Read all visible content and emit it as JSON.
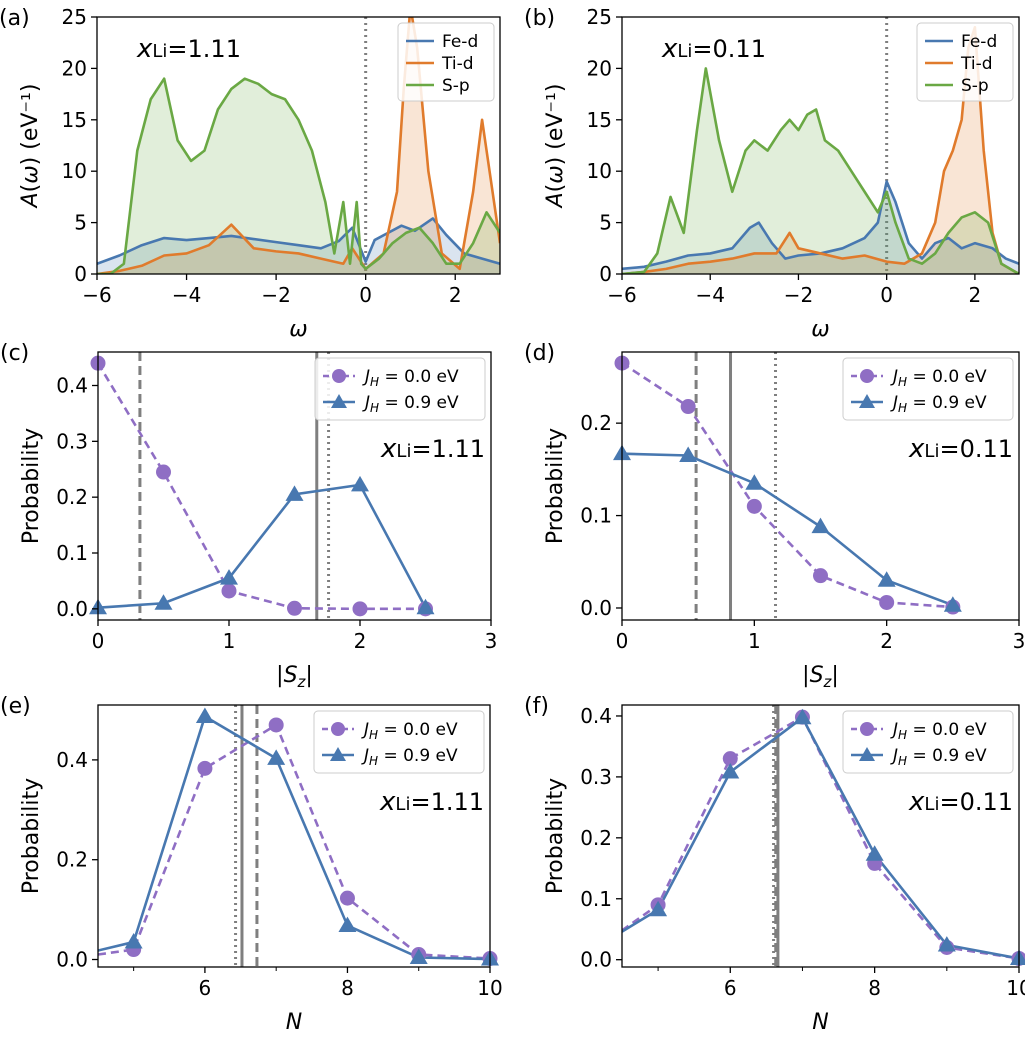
{
  "colors": {
    "blue": "#4878b0",
    "orange": "#e07b2c",
    "green": "#6aa844",
    "purple": "#8f6ec4",
    "gray": "#7f7f7f"
  },
  "chart_data": [
    {
      "id": "a",
      "type": "area",
      "panel_label": "(a)",
      "annotation": "xLi=1.11",
      "xlabel": "ω",
      "ylabel": "A(ω) (eV⁻¹)",
      "xlim": [
        -6,
        3
      ],
      "ylim": [
        0,
        25
      ],
      "xticks": [
        -6,
        -4,
        -2,
        0,
        2
      ],
      "yticks": [
        0,
        5,
        10,
        15,
        20,
        25
      ],
      "legend_position": "top-right",
      "vlines": [
        {
          "x": 0,
          "style": "dotted"
        }
      ],
      "series": [
        {
          "name": "Fe-d",
          "color": "blue",
          "x": [
            -6,
            -5.5,
            -5,
            -4.5,
            -4,
            -3.5,
            -3,
            -2.5,
            -2,
            -1.5,
            -1,
            -0.6,
            -0.3,
            0,
            0.2,
            0.5,
            0.8,
            1.1,
            1.5,
            1.8,
            2.2,
            2.6,
            3
          ],
          "y": [
            1,
            1.8,
            2.8,
            3.5,
            3.3,
            3.5,
            3.7,
            3.4,
            3.1,
            2.8,
            2.5,
            3.2,
            4.5,
            1.2,
            3.3,
            4,
            4.7,
            4.2,
            5.4,
            3.8,
            2,
            1.5,
            1
          ]
        },
        {
          "name": "Ti-d",
          "color": "orange",
          "x": [
            -6,
            -5.5,
            -5,
            -4.5,
            -4,
            -3.5,
            -3,
            -2.5,
            -2,
            -1.5,
            -1,
            -0.5,
            -0.3,
            0,
            0.4,
            0.7,
            0.85,
            1,
            1.15,
            1.4,
            1.7,
            2.1,
            2.4,
            2.6,
            2.8,
            3
          ],
          "y": [
            0,
            0.3,
            0.8,
            1.8,
            2,
            2.8,
            4.8,
            2.5,
            2.2,
            2,
            1.5,
            1,
            2.5,
            0.5,
            2,
            8,
            18,
            26,
            22,
            10,
            2,
            0.5,
            8,
            15,
            9,
            3
          ]
        },
        {
          "name": "S-p",
          "color": "green",
          "x": [
            -6,
            -5.7,
            -5.4,
            -5.1,
            -4.8,
            -4.5,
            -4.2,
            -3.9,
            -3.6,
            -3.3,
            -3,
            -2.7,
            -2.4,
            -2.1,
            -1.8,
            -1.5,
            -1.2,
            -0.9,
            -0.7,
            -0.5,
            -0.35,
            -0.2,
            -0.1,
            0,
            0.3,
            0.6,
            0.9,
            1.2,
            1.5,
            1.8,
            2.1,
            2.4,
            2.7,
            3
          ],
          "y": [
            0,
            0,
            1,
            12,
            17,
            19,
            13,
            11,
            12,
            16,
            18,
            19,
            18.5,
            17.5,
            17,
            15,
            12,
            7,
            2,
            7,
            1,
            7,
            1,
            0.5,
            1.5,
            3,
            4,
            4.5,
            3,
            1,
            1,
            3,
            6,
            4
          ]
        }
      ]
    },
    {
      "id": "b",
      "type": "area",
      "panel_label": "(b)",
      "annotation": "xLi=0.11",
      "xlabel": "ω",
      "ylabel": "A(ω) (eV⁻¹)",
      "xlim": [
        -6,
        3
      ],
      "ylim": [
        0,
        25
      ],
      "xticks": [
        -6,
        -4,
        -2,
        0,
        2
      ],
      "yticks": [
        0,
        5,
        10,
        15,
        20,
        25
      ],
      "legend_position": "top-right",
      "vlines": [
        {
          "x": 0,
          "style": "dotted"
        }
      ],
      "series": [
        {
          "name": "Fe-d",
          "color": "blue",
          "x": [
            -6,
            -5.5,
            -5,
            -4.5,
            -4,
            -3.5,
            -3.1,
            -2.9,
            -2.6,
            -2.3,
            -2,
            -1.5,
            -1,
            -0.5,
            -0.2,
            0,
            0.2,
            0.5,
            0.8,
            1.1,
            1.4,
            1.7,
            2,
            2.4,
            2.7,
            3
          ],
          "y": [
            0.5,
            0.7,
            1.2,
            1.8,
            2,
            2.5,
            4.5,
            5,
            3,
            1.5,
            1.8,
            2,
            2.5,
            3.5,
            5,
            9,
            7,
            3,
            1.5,
            3,
            3.5,
            2.5,
            3,
            2.5,
            1.5,
            1
          ]
        },
        {
          "name": "Ti-d",
          "color": "orange",
          "x": [
            -6,
            -5.5,
            -5,
            -4.5,
            -4,
            -3.5,
            -3,
            -2.5,
            -2.2,
            -2,
            -1.5,
            -1,
            -0.5,
            0,
            0.4,
            0.8,
            1.1,
            1.3,
            1.5,
            1.7,
            1.85,
            2,
            2.2,
            2.4,
            2.6,
            3
          ],
          "y": [
            0,
            0.2,
            0.5,
            1,
            1.2,
            1.5,
            2,
            2,
            4,
            2.5,
            2,
            1.5,
            1.8,
            1.2,
            1,
            2,
            5,
            10,
            12,
            15,
            22,
            24,
            12,
            4,
            1,
            0
          ]
        },
        {
          "name": "S-p",
          "color": "green",
          "x": [
            -6,
            -5.5,
            -5.2,
            -4.9,
            -4.6,
            -4.3,
            -4.1,
            -3.8,
            -3.5,
            -3.2,
            -3,
            -2.7,
            -2.4,
            -2.2,
            -2,
            -1.8,
            -1.6,
            -1.4,
            -1.1,
            -0.8,
            -0.5,
            -0.2,
            0,
            0.2,
            0.5,
            0.8,
            1.1,
            1.4,
            1.7,
            2,
            2.3,
            2.6,
            3
          ],
          "y": [
            0,
            0.2,
            2,
            7.5,
            4,
            14,
            20,
            13,
            8,
            12,
            13,
            12,
            14,
            15,
            14,
            15.5,
            16,
            13,
            12,
            10,
            8,
            6,
            8,
            5,
            1.5,
            1,
            2,
            4,
            5.5,
            6,
            5,
            1,
            0
          ]
        }
      ]
    },
    {
      "id": "c",
      "type": "line",
      "panel_label": "(c)",
      "annotation": "xLi=1.11",
      "xlabel": "|Sz|",
      "ylabel": "Probability",
      "xlim": [
        0,
        3
      ],
      "ylim": [
        -0.02,
        0.46
      ],
      "xticks": [
        0,
        1,
        2,
        3
      ],
      "yticks": [
        0.0,
        0.1,
        0.2,
        0.3,
        0.4
      ],
      "legend_position": "top-right",
      "vlines": [
        {
          "x": 0.32,
          "style": "dashed"
        },
        {
          "x": 1.67,
          "style": "solid"
        },
        {
          "x": 1.76,
          "style": "dotted"
        }
      ],
      "series": [
        {
          "name": "J_H = 0.0 eV",
          "color": "purple",
          "marker": "circle",
          "linestyle": "dashed",
          "x": [
            0,
            0.5,
            1,
            1.5,
            2,
            2.5
          ],
          "y": [
            0.44,
            0.245,
            0.032,
            0.001,
            0.0,
            0.0
          ]
        },
        {
          "name": "J_H = 0.9 eV",
          "color": "blue",
          "marker": "triangle",
          "linestyle": "solid",
          "x": [
            0,
            0.5,
            1,
            1.5,
            2,
            2.5
          ],
          "y": [
            0.002,
            0.01,
            0.055,
            0.205,
            0.222,
            0.002
          ]
        }
      ]
    },
    {
      "id": "d",
      "type": "line",
      "panel_label": "(d)",
      "annotation": "xLi=0.11",
      "xlabel": "|Sz|",
      "ylabel": "Probability",
      "xlim": [
        0,
        3
      ],
      "ylim": [
        -0.013,
        0.277
      ],
      "xticks": [
        0,
        1,
        2,
        3
      ],
      "yticks": [
        0.0,
        0.1,
        0.2
      ],
      "legend_position": "top-right",
      "vlines": [
        {
          "x": 0.56,
          "style": "dashed"
        },
        {
          "x": 0.82,
          "style": "solid"
        },
        {
          "x": 1.16,
          "style": "dotted"
        }
      ],
      "series": [
        {
          "name": "J_H = 0.0 eV",
          "color": "purple",
          "marker": "circle",
          "linestyle": "dashed",
          "x": [
            0,
            0.5,
            1,
            1.5,
            2,
            2.5
          ],
          "y": [
            0.265,
            0.218,
            0.11,
            0.035,
            0.006,
            0.001
          ]
        },
        {
          "name": "J_H = 0.9 eV",
          "color": "blue",
          "marker": "triangle",
          "linestyle": "solid",
          "x": [
            0,
            0.5,
            1,
            1.5,
            2,
            2.5
          ],
          "y": [
            0.167,
            0.165,
            0.135,
            0.088,
            0.03,
            0.003
          ]
        }
      ]
    },
    {
      "id": "e",
      "type": "line",
      "panel_label": "(e)",
      "annotation": "xLi=1.11",
      "xlabel": "N",
      "ylabel": "Probability",
      "xlim": [
        4.5,
        10
      ],
      "ylim": [
        -0.015,
        0.51
      ],
      "xticks": [
        6,
        8,
        10
      ],
      "yticks": [
        0.0,
        0.2,
        0.4
      ],
      "legend_position": "top-right",
      "vlines": [
        {
          "x": 6.43,
          "style": "dotted"
        },
        {
          "x": 6.52,
          "style": "solid"
        },
        {
          "x": 6.73,
          "style": "dashed"
        }
      ],
      "series": [
        {
          "name": "J_H = 0.0 eV",
          "color": "purple",
          "marker": "circle",
          "linestyle": "dashed",
          "x": [
            4.5,
            5,
            6,
            7,
            8,
            9,
            10
          ],
          "y": [
            0.01,
            0.02,
            0.383,
            0.47,
            0.123,
            0.01,
            0.002
          ]
        },
        {
          "name": "J_H = 0.9 eV",
          "color": "blue",
          "marker": "triangle",
          "linestyle": "solid",
          "x": [
            4.5,
            5,
            6,
            7,
            8,
            9,
            10
          ],
          "y": [
            0.018,
            0.035,
            0.487,
            0.403,
            0.068,
            0.004,
            0.001
          ]
        }
      ]
    },
    {
      "id": "f",
      "type": "line",
      "panel_label": "(f)",
      "annotation": "xLi=0.11",
      "xlabel": "N",
      "ylabel": "Probability",
      "xlim": [
        4.5,
        10
      ],
      "ylim": [
        -0.012,
        0.418
      ],
      "xticks": [
        6,
        8,
        10
      ],
      "yticks": [
        0.0,
        0.1,
        0.2,
        0.3,
        0.4
      ],
      "legend_position": "top-right",
      "vlines": [
        {
          "x": 6.6,
          "style": "dotted"
        },
        {
          "x": 6.63,
          "style": "dashed"
        },
        {
          "x": 6.66,
          "style": "solid"
        }
      ],
      "series": [
        {
          "name": "J_H = 0.0 eV",
          "color": "purple",
          "marker": "circle",
          "linestyle": "dashed",
          "x": [
            4.5,
            5,
            6,
            7,
            8,
            9,
            10
          ],
          "y": [
            0.048,
            0.09,
            0.33,
            0.398,
            0.158,
            0.02,
            0.002
          ]
        },
        {
          "name": "J_H = 0.9 eV",
          "color": "blue",
          "marker": "triangle",
          "linestyle": "solid",
          "x": [
            4.5,
            5,
            6,
            7,
            8,
            9,
            10
          ],
          "y": [
            0.046,
            0.082,
            0.308,
            0.397,
            0.173,
            0.024,
            0.002
          ]
        }
      ]
    }
  ]
}
